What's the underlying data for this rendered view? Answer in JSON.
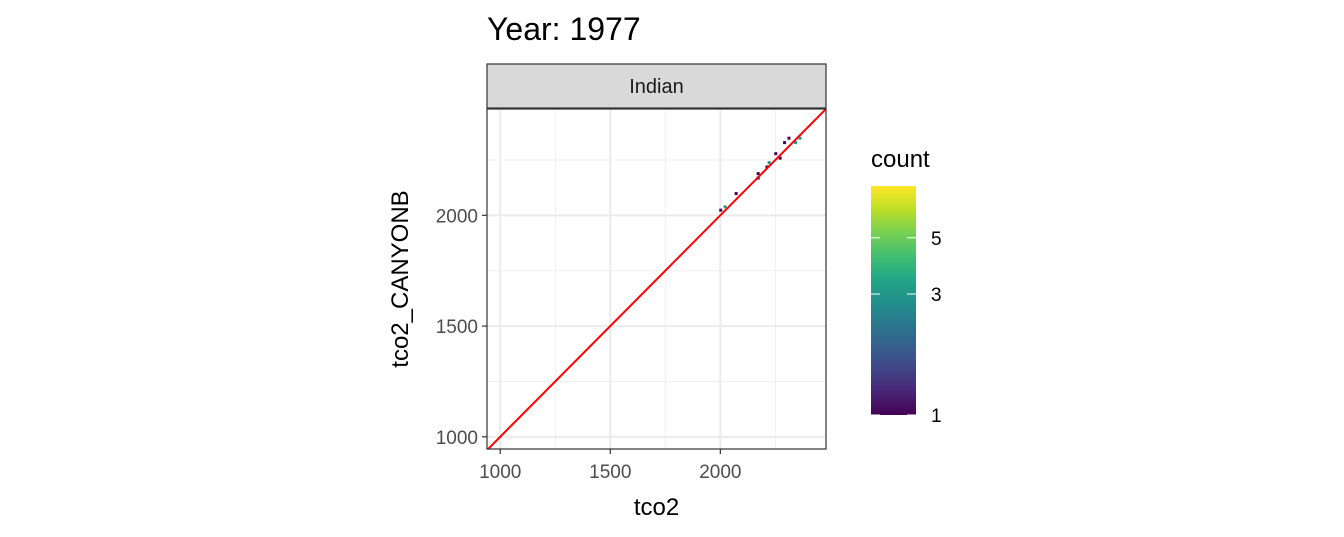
{
  "chart_data": {
    "type": "heatmap",
    "title": "Year: 1977",
    "facet": "Indian",
    "xlabel": "tco2",
    "ylabel": "tco2_CANYONB",
    "xlim": [
      940,
      2480
    ],
    "ylim": [
      945,
      2480
    ],
    "xticks": [
      1000,
      1500,
      2000
    ],
    "yticks": [
      1000,
      1500,
      2000
    ],
    "grid": true,
    "identity_line": {
      "color": "#ff0000",
      "from": [
        940,
        940
      ],
      "to": [
        2480,
        2480
      ]
    },
    "bin_width": [
      20,
      20
    ],
    "bins": [
      {
        "x": 2000,
        "y": 2025,
        "count": 1
      },
      {
        "x": 2020,
        "y": 2040,
        "count": 3
      },
      {
        "x": 2070,
        "y": 2100,
        "count": 1
      },
      {
        "x": 2170,
        "y": 2170,
        "count": 1
      },
      {
        "x": 2170,
        "y": 2190,
        "count": 1
      },
      {
        "x": 2210,
        "y": 2220,
        "count": 1
      },
      {
        "x": 2220,
        "y": 2240,
        "count": 3
      },
      {
        "x": 2250,
        "y": 2280,
        "count": 1
      },
      {
        "x": 2270,
        "y": 2260,
        "count": 1
      },
      {
        "x": 2290,
        "y": 2330,
        "count": 1
      },
      {
        "x": 2310,
        "y": 2350,
        "count": 1
      },
      {
        "x": 2340,
        "y": 2330,
        "count": 3
      },
      {
        "x": 2360,
        "y": 2350,
        "count": 3
      }
    ],
    "legend": {
      "title": "count",
      "ticks": [
        "1",
        "3",
        "5"
      ],
      "tick_values": [
        1,
        3,
        5
      ],
      "range": [
        1,
        8
      ],
      "scale": "log",
      "palette": "viridis",
      "placement": "right"
    }
  }
}
